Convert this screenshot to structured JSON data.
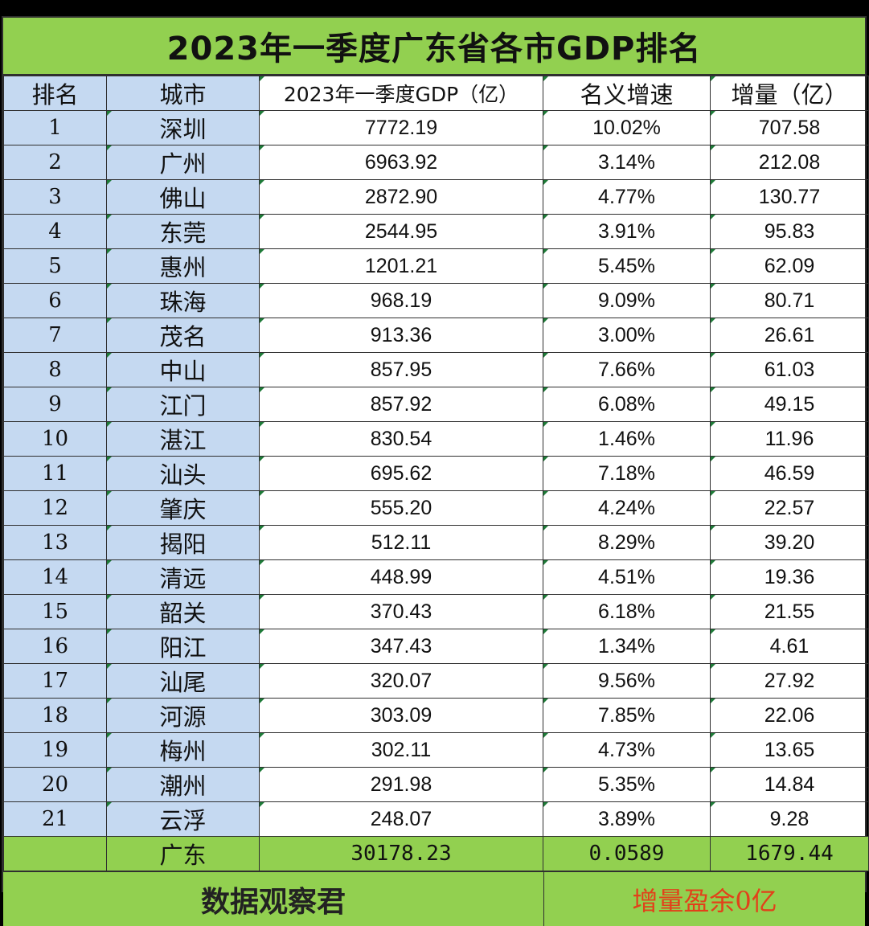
{
  "chart_data": {
    "type": "table",
    "title": "2023年一季度广东省各市GDP排名",
    "columns": [
      "排名",
      "城市",
      "2023年一季度GDP（亿）",
      "名义增速",
      "增量（亿）"
    ],
    "rows": [
      [
        "1",
        "深圳",
        "7772.19",
        "10.02%",
        "707.58"
      ],
      [
        "2",
        "广州",
        "6963.92",
        "3.14%",
        "212.08"
      ],
      [
        "3",
        "佛山",
        "2872.90",
        "4.77%",
        "130.77"
      ],
      [
        "4",
        "东莞",
        "2544.95",
        "3.91%",
        "95.83"
      ],
      [
        "5",
        "惠州",
        "1201.21",
        "5.45%",
        "62.09"
      ],
      [
        "6",
        "珠海",
        "968.19",
        "9.09%",
        "80.71"
      ],
      [
        "7",
        "茂名",
        "913.36",
        "3.00%",
        "26.61"
      ],
      [
        "8",
        "中山",
        "857.95",
        "7.66%",
        "61.03"
      ],
      [
        "9",
        "江门",
        "857.92",
        "6.08%",
        "49.15"
      ],
      [
        "10",
        "湛江",
        "830.54",
        "1.46%",
        "11.96"
      ],
      [
        "11",
        "汕头",
        "695.62",
        "7.18%",
        "46.59"
      ],
      [
        "12",
        "肇庆",
        "555.20",
        "4.24%",
        "22.57"
      ],
      [
        "13",
        "揭阳",
        "512.11",
        "8.29%",
        "39.20"
      ],
      [
        "14",
        "清远",
        "448.99",
        "4.51%",
        "19.36"
      ],
      [
        "15",
        "韶关",
        "370.43",
        "6.18%",
        "21.55"
      ],
      [
        "16",
        "阳江",
        "347.43",
        "1.34%",
        "4.61"
      ],
      [
        "17",
        "汕尾",
        "320.07",
        "9.56%",
        "27.92"
      ],
      [
        "18",
        "河源",
        "303.09",
        "7.85%",
        "22.06"
      ],
      [
        "19",
        "梅州",
        "302.11",
        "4.73%",
        "13.65"
      ],
      [
        "20",
        "潮州",
        "291.98",
        "5.35%",
        "14.84"
      ],
      [
        "21",
        "云浮",
        "248.07",
        "3.89%",
        "9.28"
      ]
    ],
    "total": [
      "",
      "广东",
      "30178.23",
      "0.0589",
      "1679.44"
    ]
  },
  "footer": {
    "source": "数据观察君",
    "note": "增量盈余0亿"
  },
  "colors": {
    "title_bg": "#92d050",
    "left_columns_bg": "#c5d9f1",
    "note_text": "#e2411a"
  }
}
